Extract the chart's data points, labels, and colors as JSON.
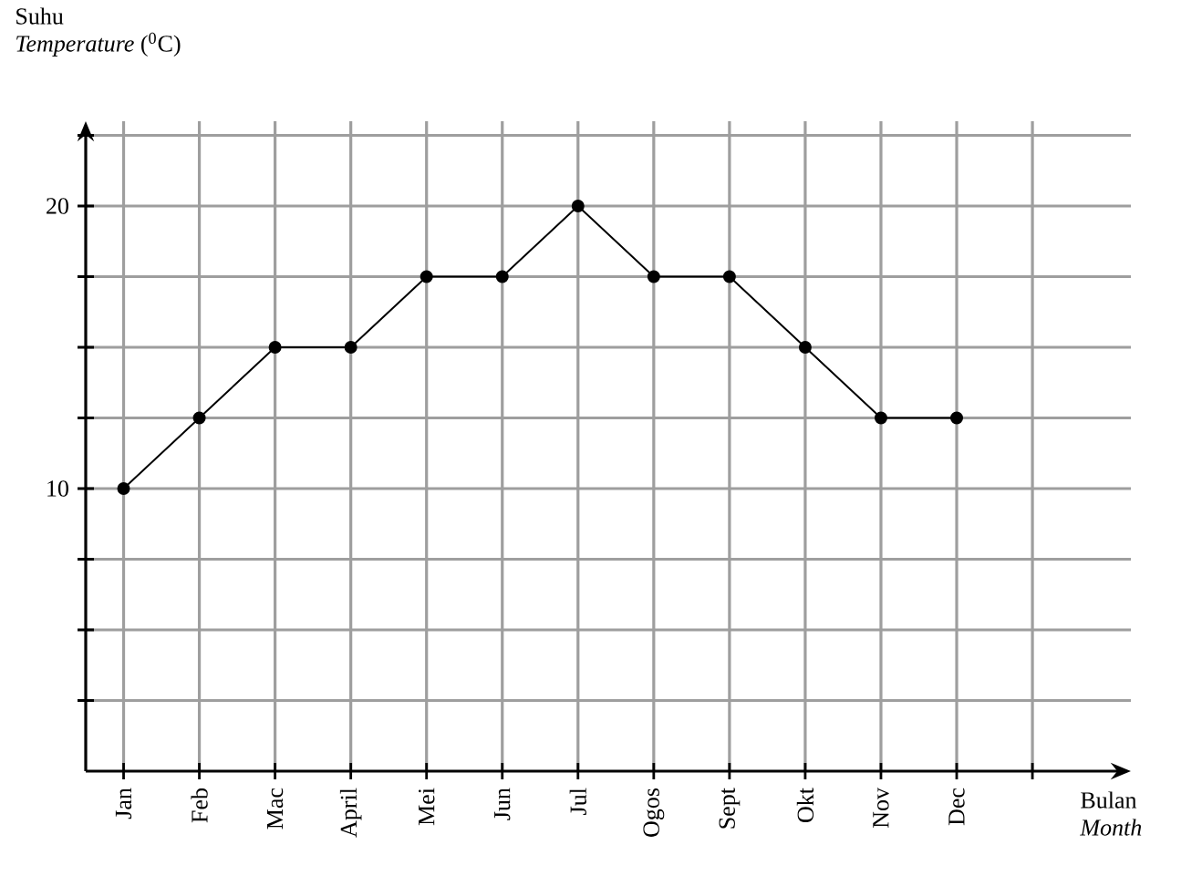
{
  "chart_data": {
    "type": "line",
    "ylabel": "Suhu *Temperature* ($^{0}$C)",
    "xlabel": "Bulan *Month*",
    "categories": [
      "Jan",
      "Feb",
      "Mac",
      "April",
      "Mei",
      "Jun",
      "Jul",
      "Ogos",
      "Sept",
      "Okt",
      "Nov",
      "Dec"
    ],
    "values": [
      10,
      12.5,
      15,
      15,
      17.5,
      17.5,
      20,
      17.5,
      17.5,
      15,
      12.5,
      12.5
    ],
    "color": "#000000",
    "marker": "circle",
    "line_style": "solid",
    "grid": true,
    "ylim": [
      0,
      23
    ],
    "yticks": [
      {
        "value": 2.5,
        "label": null
      },
      {
        "value": 5,
        "label": null
      },
      {
        "value": 7.5,
        "label": null
      },
      10,
      {
        "value": 12.5,
        "label": null
      },
      {
        "value": 15,
        "label": null
      },
      {
        "value": 17.5,
        "label": null
      },
      20,
      {
        "value": 22.5,
        "label": null
      }
    ]
  }
}
